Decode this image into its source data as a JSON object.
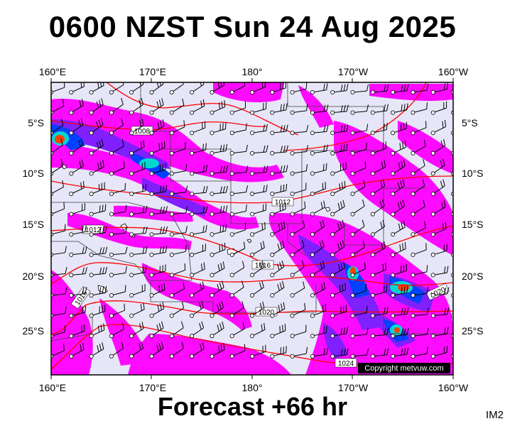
{
  "title": "0600 NZST Sun 24 Aug 2025",
  "footer": "Forecast +66 hr",
  "image_tag": "IM2",
  "copyright": "Copyright metvuw.com",
  "top_lon_labels": [
    "160°E",
    "170°E",
    "180°",
    "170°W",
    "160°W"
  ],
  "bottom_lon_labels": [
    "160°E",
    "170°E",
    "180°",
    "170°W",
    "160°W"
  ],
  "left_lat_labels": [
    "5°S",
    "10°S",
    "15°S",
    "20°S",
    "25°S"
  ],
  "right_lat_labels": [
    "5°S",
    "10°S",
    "15°S",
    "20°S",
    "25°S"
  ],
  "isobar_labels": [
    "1008",
    "1012",
    "1012",
    "1016",
    "1016",
    "1020",
    "1020",
    "1024"
  ],
  "colors": {
    "ocean": "#e6e6f8",
    "rain_light": "#ff00ff",
    "rain_medium": "#8020ff",
    "rain_heavy": "#0040ff",
    "rain_very_heavy": "#00e0e0",
    "rain_extreme": "#ff4000",
    "isobar": "#ff0000",
    "eez": "#404040"
  }
}
